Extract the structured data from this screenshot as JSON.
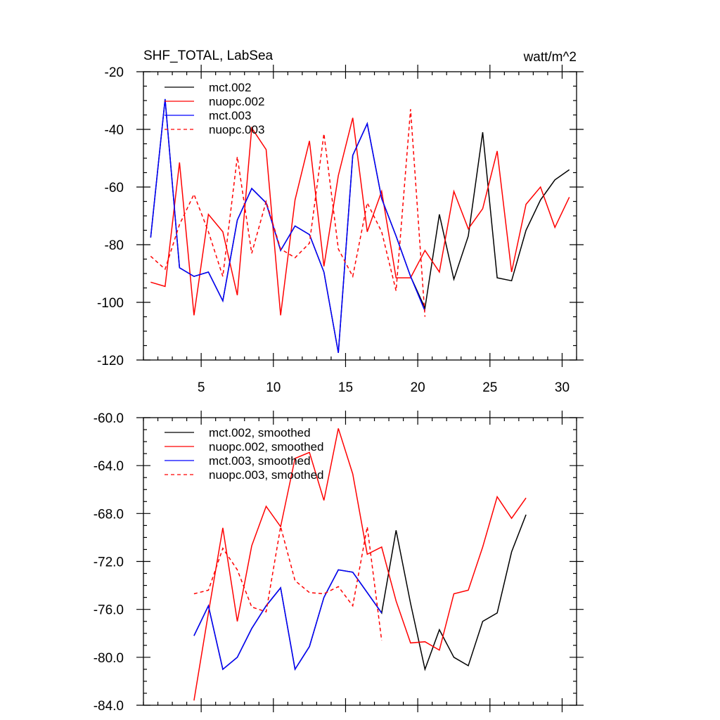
{
  "chart_data": [
    {
      "type": "line",
      "title": "SHF_TOTAL, LabSea",
      "units": "watt/m^2",
      "xlim": [
        1,
        31
      ],
      "ylim": [
        -120,
        -20
      ],
      "x_major_ticks": [
        5,
        10,
        15,
        20,
        25,
        30
      ],
      "x_tick_labels": [
        "5",
        "10",
        "15",
        "20",
        "25",
        "30"
      ],
      "y_major_ticks": [
        -20,
        -40,
        -60,
        -80,
        -100,
        -120
      ],
      "y_tick_labels": [
        "-20",
        "-40",
        "-60",
        "-80",
        "-100",
        "-120"
      ],
      "legend_position": "top-left",
      "series": [
        {
          "name": "mct.002",
          "color": "#000000",
          "dash": "solid",
          "x": [
            1.5,
            2.5,
            3.5,
            4.5,
            5.5,
            6.5,
            7.5,
            8.5,
            9.5,
            10.5,
            11.5,
            12.5,
            13.5,
            14.5,
            15.5,
            16.5,
            17.5,
            18.5,
            19.5,
            20.5,
            21.5,
            22.5,
            23.5,
            24.5,
            25.5,
            26.5,
            27.5,
            28.5,
            29.5,
            30.5
          ],
          "y": [
            -77.5,
            -29.5,
            -88,
            -91,
            -89.5,
            -99.5,
            -71.5,
            -60.5,
            -65.5,
            -82,
            -73.5,
            -76.5,
            -89.5,
            -117.5,
            -49,
            -38,
            -64,
            -77,
            -91,
            -102,
            -69.5,
            -92,
            -77,
            -41,
            -91.5,
            -92.5,
            -75,
            -64.5,
            -57.5,
            -54
          ]
        },
        {
          "name": "nuopc.002",
          "color": "#ff0000",
          "dash": "solid",
          "x": [
            1.5,
            2.5,
            3.5,
            4.5,
            5.5,
            6.5,
            7.5,
            8.5,
            9.5,
            10.5,
            11.5,
            12.5,
            13.5,
            14.5,
            15.5,
            16.5,
            17.5,
            18.5,
            19.5,
            20.5,
            21.5,
            22.5,
            23.5,
            24.5,
            25.5,
            26.5,
            27.5,
            28.5,
            29.5,
            30.5
          ],
          "y": [
            -93,
            -94.5,
            -51.5,
            -104.5,
            -69.5,
            -75.5,
            -97.5,
            -39.5,
            -47,
            -104.5,
            -64.5,
            -44,
            -87.5,
            -56,
            -36,
            -75.5,
            -61.5,
            -91.5,
            -91.5,
            -82,
            -89.5,
            -61.5,
            -74.5,
            -67.5,
            -47.5,
            -89.5,
            -66,
            -60,
            -74,
            -63.5
          ]
        },
        {
          "name": "mct.003",
          "color": "#0000ff",
          "dash": "solid",
          "x": [
            1.5,
            2.5,
            3.5,
            4.5,
            5.5,
            6.5,
            7.5,
            8.5,
            9.5,
            10.5,
            11.5,
            12.5,
            13.5,
            14.5,
            15.5,
            16.5,
            17.5,
            18.5,
            19.5,
            20.5
          ],
          "y": [
            -77.5,
            -29.5,
            -88,
            -91,
            -89.5,
            -99.5,
            -71.5,
            -60.5,
            -65.5,
            -82,
            -73.5,
            -76.5,
            -89.5,
            -117.5,
            -49,
            -38,
            -64,
            -77,
            -91,
            -103
          ]
        },
        {
          "name": "nuopc.003",
          "color": "#ff0000",
          "dash": "dashed",
          "x": [
            1.5,
            2.5,
            3.5,
            4.5,
            5.5,
            6.5,
            7.5,
            8.5,
            9.5,
            10.5,
            11.5,
            12.5,
            13.5,
            14.5,
            15.5,
            16.5,
            17.5,
            18.5,
            19.5,
            20.5
          ],
          "y": [
            -84,
            -88.5,
            -73,
            -62.5,
            -75.5,
            -91,
            -49.5,
            -83,
            -65,
            -81.5,
            -84.5,
            -79.5,
            -41.5,
            -81.5,
            -91,
            -65.5,
            -75.5,
            -96,
            -33,
            -105
          ]
        }
      ]
    },
    {
      "type": "line",
      "xlim": [
        1,
        31
      ],
      "ylim": [
        -84,
        -60
      ],
      "x_major_ticks": [
        5,
        10,
        15,
        20,
        25,
        30
      ],
      "y_major_ticks": [
        -60,
        -64,
        -68,
        -72,
        -76,
        -80,
        -84
      ],
      "y_tick_labels": [
        "-60.0",
        "-64.0",
        "-68.0",
        "-72.0",
        "-76.0",
        "-80.0",
        "-84.0"
      ],
      "legend_position": "top-left",
      "series": [
        {
          "name": "mct.002, smoothed",
          "color": "#000000",
          "dash": "solid",
          "x": [
            4.5,
            5.5,
            6.5,
            7.5,
            8.5,
            9.5,
            10.5,
            11.5,
            12.5,
            13.5,
            14.5,
            15.5,
            16.5,
            17.5,
            18.5,
            19.5,
            20.5,
            21.5,
            22.5,
            23.5,
            24.5,
            25.5,
            26.5,
            27.5
          ],
          "y": [
            -78.2,
            -75.7,
            -81,
            -80,
            -77.6,
            -75.7,
            -74.2,
            -81,
            -79.1,
            -75,
            -72.7,
            -72.9,
            -74.6,
            -76.3,
            -69.4,
            -75.5,
            -81,
            -77.7,
            -80,
            -80.7,
            -77,
            -76.3,
            -71.2,
            -68.1
          ]
        },
        {
          "name": "nuopc.002, smoothed",
          "color": "#ff0000",
          "dash": "solid",
          "x": [
            4.5,
            5.5,
            6.5,
            7.5,
            8.5,
            9.5,
            10.5,
            11.5,
            12.5,
            13.5,
            14.5,
            15.5,
            16.5,
            17.5,
            18.5,
            19.5,
            20.5,
            21.5,
            22.5,
            23.5,
            24.5,
            25.5,
            26.5,
            27.5
          ],
          "y": [
            -83.6,
            -76.3,
            -69.2,
            -77,
            -70.7,
            -67.4,
            -69.1,
            -63.4,
            -62.9,
            -66.9,
            -60.9,
            -64.7,
            -71.4,
            -70.8,
            -75.3,
            -78.8,
            -78.7,
            -79.4,
            -74.7,
            -74.4,
            -70.8,
            -66.6,
            -68.4,
            -66.7
          ]
        },
        {
          "name": "mct.003, smoothed",
          "color": "#0000ff",
          "dash": "solid",
          "x": [
            4.5,
            5.5,
            6.5,
            7.5,
            8.5,
            9.5,
            10.5,
            11.5,
            12.5,
            13.5,
            14.5,
            15.5,
            16.5,
            17.5
          ],
          "y": [
            -78.2,
            -75.7,
            -81,
            -80,
            -77.6,
            -75.7,
            -74.2,
            -81,
            -79.1,
            -75,
            -72.7,
            -72.9,
            -74.6,
            -76.3
          ]
        },
        {
          "name": "nuopc.003, smoothed",
          "color": "#ff0000",
          "dash": "dashed",
          "x": [
            4.5,
            5.5,
            6.5,
            7.5,
            8.5,
            9.5,
            10.5,
            11.5,
            12.5,
            13.5,
            14.5,
            15.5,
            16.5,
            17.5
          ],
          "y": [
            -74.7,
            -74.4,
            -70.9,
            -72.7,
            -75.8,
            -76.2,
            -69.1,
            -73.6,
            -74.6,
            -74.7,
            -74.1,
            -75.7,
            -69.1,
            -78.6
          ]
        }
      ]
    }
  ]
}
